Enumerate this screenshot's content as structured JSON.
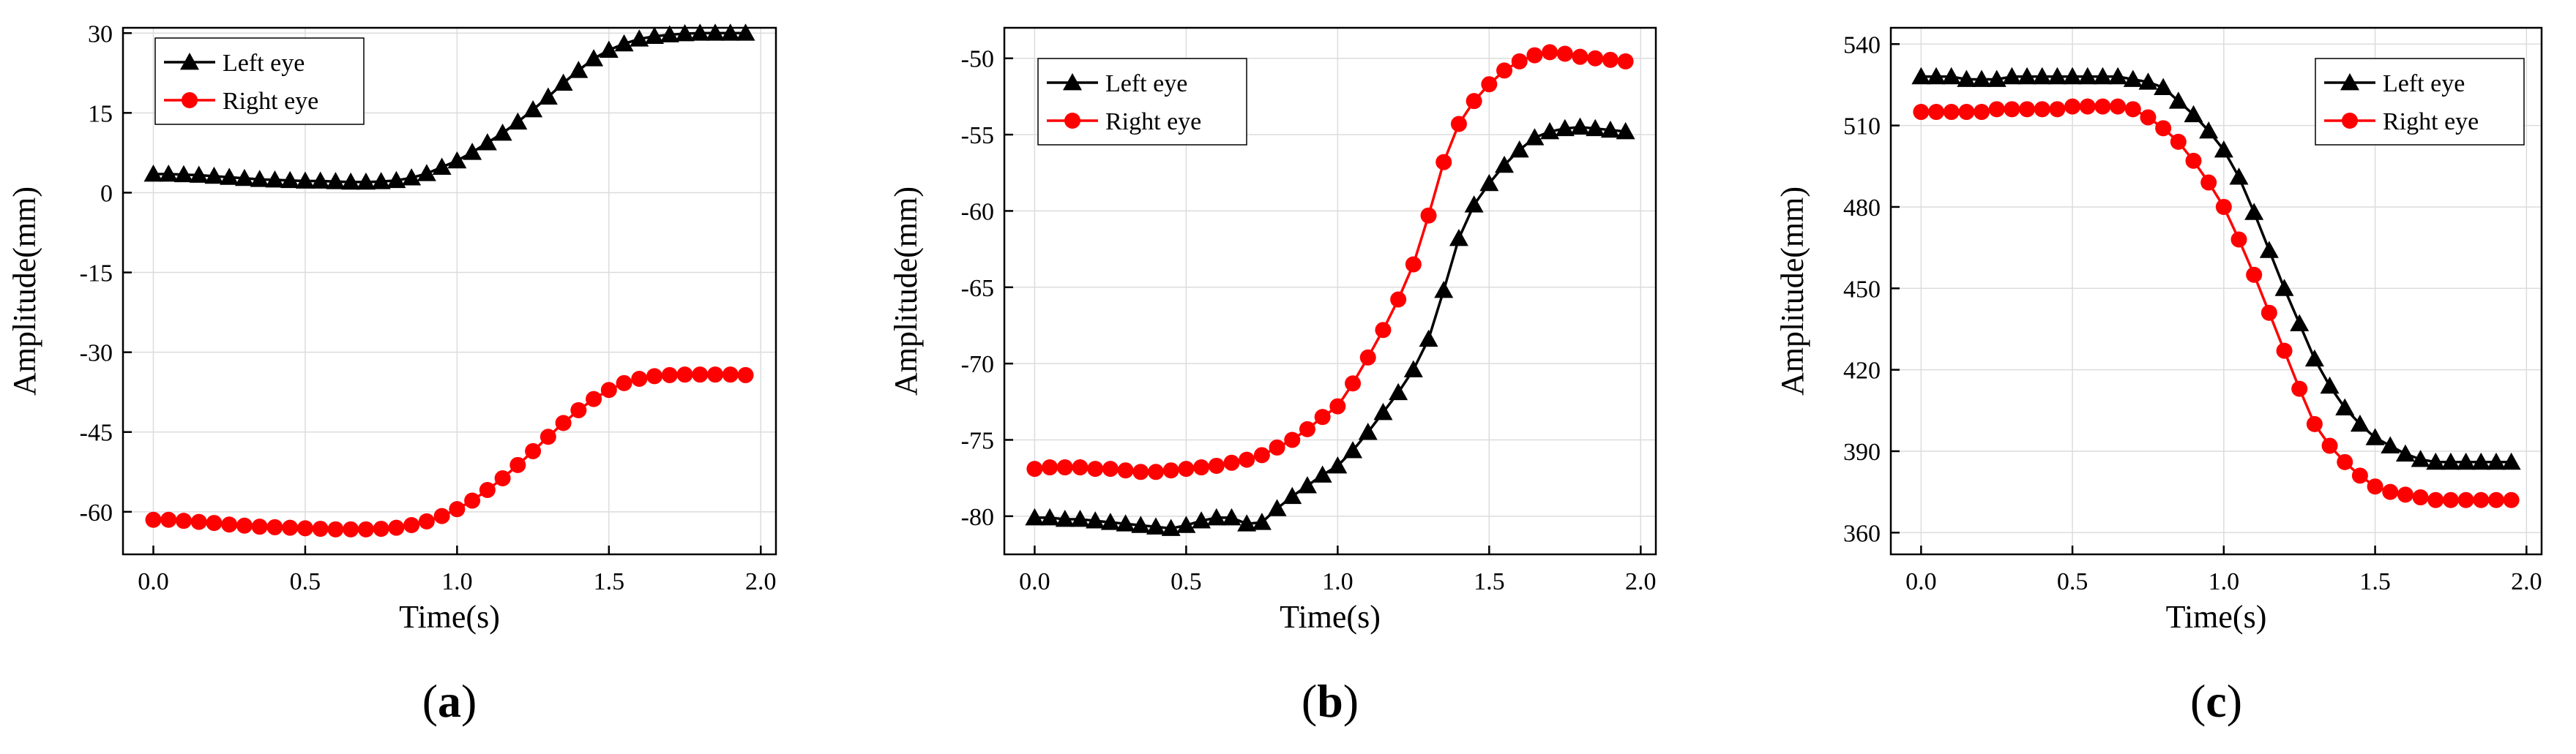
{
  "chart_data": [
    {
      "type": "line",
      "panel_label": "a",
      "xlabel": "Time(s)",
      "ylabel": "Amplitude(mm)",
      "xlim": [
        -0.1,
        2.05
      ],
      "ylim": [
        -68,
        31
      ],
      "xticks": [
        0.0,
        0.5,
        1.0,
        1.5,
        2.0
      ],
      "xtick_labels": [
        "0.0",
        "0.5",
        "1.0",
        "1.5",
        "2.0"
      ],
      "yticks": [
        30,
        15,
        0,
        -15,
        -30,
        -45,
        -60
      ],
      "ytick_labels": [
        "30",
        "15",
        "0",
        "-15",
        "-30",
        "-45",
        "-60"
      ],
      "grid": true,
      "legend_position": "top-left",
      "x": [
        0.0,
        0.05,
        0.1,
        0.15,
        0.2,
        0.25,
        0.3,
        0.35,
        0.4,
        0.45,
        0.5,
        0.55,
        0.6,
        0.65,
        0.7,
        0.75,
        0.8,
        0.85,
        0.9,
        0.95,
        1.0,
        1.05,
        1.1,
        1.15,
        1.2,
        1.25,
        1.3,
        1.35,
        1.4,
        1.45,
        1.5,
        1.55,
        1.6,
        1.65,
        1.7,
        1.75,
        1.8,
        1.85,
        1.9,
        1.95
      ],
      "series": [
        {
          "name": "Left eye",
          "color": "#000000",
          "marker": "triangle",
          "values": [
            3.5,
            3.5,
            3.4,
            3.3,
            3.1,
            2.9,
            2.7,
            2.5,
            2.4,
            2.3,
            2.2,
            2.2,
            2.1,
            2.0,
            2.0,
            2.1,
            2.3,
            2.8,
            3.6,
            4.8,
            6.0,
            7.6,
            9.4,
            11.2,
            13.3,
            15.6,
            18.0,
            20.6,
            23.0,
            25.2,
            26.8,
            28.0,
            28.9,
            29.4,
            29.7,
            29.9,
            30.0,
            30.0,
            30.0,
            30.0
          ]
        },
        {
          "name": "Right eye",
          "color": "#ff0000",
          "marker": "circle",
          "values": [
            -61.5,
            -61.5,
            -61.7,
            -61.9,
            -62.1,
            -62.4,
            -62.6,
            -62.8,
            -62.9,
            -63.0,
            -63.1,
            -63.2,
            -63.3,
            -63.3,
            -63.3,
            -63.2,
            -63.0,
            -62.5,
            -61.8,
            -60.8,
            -59.5,
            -57.9,
            -55.9,
            -53.7,
            -51.2,
            -48.6,
            -45.9,
            -43.3,
            -40.9,
            -38.8,
            -37.1,
            -35.8,
            -35.0,
            -34.5,
            -34.3,
            -34.2,
            -34.2,
            -34.2,
            -34.2,
            -34.3
          ]
        }
      ]
    },
    {
      "type": "line",
      "panel_label": "b",
      "xlabel": "Time(s)",
      "ylabel": "Amplitude(mm)",
      "xlim": [
        -0.1,
        2.05
      ],
      "ylim": [
        -82.5,
        -48
      ],
      "xticks": [
        0.0,
        0.5,
        1.0,
        1.5,
        2.0
      ],
      "xtick_labels": [
        "0.0",
        "0.5",
        "1.0",
        "1.5",
        "2.0"
      ],
      "yticks": [
        -50,
        -55,
        -60,
        -65,
        -70,
        -75,
        -80
      ],
      "ytick_labels": [
        "-50",
        "-55",
        "-60",
        "-65",
        "-70",
        "-75",
        "-80"
      ],
      "grid": true,
      "legend_position": "top-left",
      "x": [
        0.0,
        0.05,
        0.1,
        0.15,
        0.2,
        0.25,
        0.3,
        0.35,
        0.4,
        0.45,
        0.5,
        0.55,
        0.6,
        0.65,
        0.7,
        0.75,
        0.8,
        0.85,
        0.9,
        0.95,
        1.0,
        1.05,
        1.1,
        1.15,
        1.2,
        1.25,
        1.3,
        1.35,
        1.4,
        1.45,
        1.5,
        1.55,
        1.6,
        1.65,
        1.7,
        1.75,
        1.8,
        1.85,
        1.9,
        1.95
      ],
      "series": [
        {
          "name": "Left eye",
          "color": "#000000",
          "marker": "triangle",
          "values": [
            -80.1,
            -80.1,
            -80.2,
            -80.2,
            -80.3,
            -80.4,
            -80.5,
            -80.6,
            -80.7,
            -80.8,
            -80.6,
            -80.3,
            -80.1,
            -80.1,
            -80.5,
            -80.4,
            -79.5,
            -78.7,
            -78.0,
            -77.3,
            -76.7,
            -75.7,
            -74.5,
            -73.2,
            -71.9,
            -70.4,
            -68.4,
            -65.2,
            -61.8,
            -59.6,
            -58.2,
            -57.0,
            -56.0,
            -55.2,
            -54.8,
            -54.6,
            -54.5,
            -54.6,
            -54.7,
            -54.8
          ]
        },
        {
          "name": "Right eye",
          "color": "#ff0000",
          "marker": "circle",
          "values": [
            -76.9,
            -76.8,
            -76.8,
            -76.8,
            -76.9,
            -76.9,
            -77.0,
            -77.1,
            -77.1,
            -77.0,
            -76.9,
            -76.8,
            -76.7,
            -76.5,
            -76.3,
            -76.0,
            -75.5,
            -75.0,
            -74.3,
            -73.5,
            -72.8,
            -71.3,
            -69.6,
            -67.8,
            -65.8,
            -63.5,
            -60.3,
            -56.8,
            -54.3,
            -52.8,
            -51.7,
            -50.8,
            -50.2,
            -49.8,
            -49.6,
            -49.7,
            -49.9,
            -50.0,
            -50.1,
            -50.2
          ]
        }
      ]
    },
    {
      "type": "line",
      "panel_label": "c",
      "xlabel": "Time(s)",
      "ylabel": "Amplitude(mm)",
      "xlim": [
        -0.1,
        2.05
      ],
      "ylim": [
        352,
        546
      ],
      "xticks": [
        0.0,
        0.5,
        1.0,
        1.5,
        2.0
      ],
      "xtick_labels": [
        "0.0",
        "0.5",
        "1.0",
        "1.5",
        "2.0"
      ],
      "yticks": [
        540,
        510,
        480,
        450,
        420,
        390,
        360
      ],
      "ytick_labels": [
        "540",
        "510",
        "480",
        "450",
        "420",
        "390",
        "360"
      ],
      "grid": true,
      "legend_position": "top-right",
      "x": [
        0.0,
        0.05,
        0.1,
        0.15,
        0.2,
        0.25,
        0.3,
        0.35,
        0.4,
        0.45,
        0.5,
        0.55,
        0.6,
        0.65,
        0.7,
        0.75,
        0.8,
        0.85,
        0.9,
        0.95,
        1.0,
        1.05,
        1.1,
        1.15,
        1.2,
        1.25,
        1.3,
        1.35,
        1.4,
        1.45,
        1.5,
        1.55,
        1.6,
        1.65,
        1.7,
        1.75,
        1.8,
        1.85,
        1.9,
        1.95
      ],
      "series": [
        {
          "name": "Left eye",
          "color": "#000000",
          "marker": "triangle",
          "values": [
            528,
            528,
            528,
            527,
            527,
            527,
            528,
            528,
            528,
            528,
            528,
            528,
            528,
            528,
            527,
            526,
            524,
            519,
            514,
            508,
            501,
            491,
            478,
            464,
            450,
            437,
            424,
            414,
            406,
            400,
            395,
            392,
            389,
            387,
            386,
            386,
            386,
            386,
            386,
            386
          ]
        },
        {
          "name": "Right eye",
          "color": "#ff0000",
          "marker": "circle",
          "values": [
            515,
            515,
            515,
            515,
            515,
            516,
            516,
            516,
            516,
            516,
            517,
            517,
            517,
            517,
            516,
            513,
            509,
            504,
            497,
            489,
            480,
            468,
            455,
            441,
            427,
            413,
            400,
            392,
            386,
            381,
            377,
            375,
            374,
            373,
            372,
            372,
            372,
            372,
            372,
            372
          ]
        }
      ]
    }
  ]
}
